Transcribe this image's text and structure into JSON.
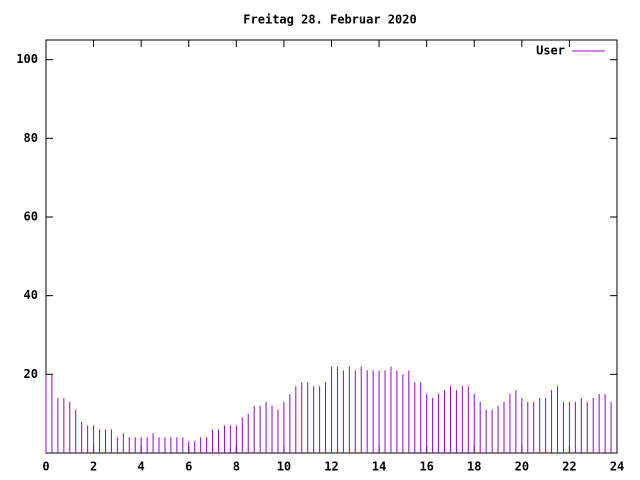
{
  "chart_data": {
    "type": "impulse",
    "title": "Freitag 28. Februar 2020",
    "x": [
      0,
      0.25,
      0.5,
      0.75,
      1,
      1.25,
      1.5,
      1.75,
      2,
      2.25,
      2.5,
      2.75,
      3,
      3.25,
      3.5,
      3.75,
      4,
      4.25,
      4.5,
      4.75,
      5,
      5.25,
      5.5,
      5.75,
      6,
      6.25,
      6.5,
      6.75,
      7,
      7.25,
      7.5,
      7.75,
      8,
      8.25,
      8.5,
      8.75,
      9,
      9.25,
      9.5,
      9.75,
      10,
      10.25,
      10.5,
      10.75,
      11,
      11.25,
      11.5,
      11.75,
      12,
      12.25,
      12.5,
      12.75,
      13,
      13.25,
      13.5,
      13.75,
      14,
      14.25,
      14.5,
      14.75,
      15,
      15.25,
      15.5,
      15.75,
      16,
      16.25,
      16.5,
      16.75,
      17,
      17.25,
      17.5,
      17.75,
      18,
      18.25,
      18.5,
      18.75,
      19,
      19.25,
      19.5,
      19.75,
      20,
      20.25,
      20.5,
      20.75,
      21,
      21.25,
      21.5,
      21.75,
      22,
      22.25,
      22.5,
      22.75,
      23,
      23.25,
      23.5,
      23.75
    ],
    "series": [
      {
        "name": "User",
        "color": "#9400d3",
        "values": [
          20,
          20,
          14,
          14,
          13,
          11,
          8,
          7,
          7,
          6,
          6,
          6,
          4,
          5,
          4,
          4,
          4,
          4,
          5,
          4,
          4,
          4,
          4,
          4,
          3,
          3,
          4,
          4,
          6,
          6,
          7,
          7,
          7,
          9,
          10,
          12,
          12,
          13,
          12,
          11,
          13,
          15,
          17,
          18,
          18,
          17,
          17,
          18,
          22,
          22,
          21,
          22,
          21,
          22,
          21,
          21,
          21,
          21,
          22,
          21,
          20,
          21,
          18,
          18,
          15,
          14,
          15,
          16,
          17,
          16,
          17,
          17,
          15,
          13,
          11,
          11,
          12,
          13,
          15,
          16,
          14,
          13,
          13,
          14,
          14,
          16,
          17,
          13,
          13,
          13,
          14,
          13,
          14,
          15,
          15,
          13
        ]
      }
    ],
    "xlim": [
      0,
      24
    ],
    "xticks": [
      0,
      2,
      4,
      6,
      8,
      10,
      12,
      14,
      16,
      18,
      20,
      22,
      24
    ],
    "ylim": [
      0,
      105
    ],
    "yticks": [
      20,
      40,
      60,
      80,
      100
    ],
    "legend": "top-right"
  }
}
